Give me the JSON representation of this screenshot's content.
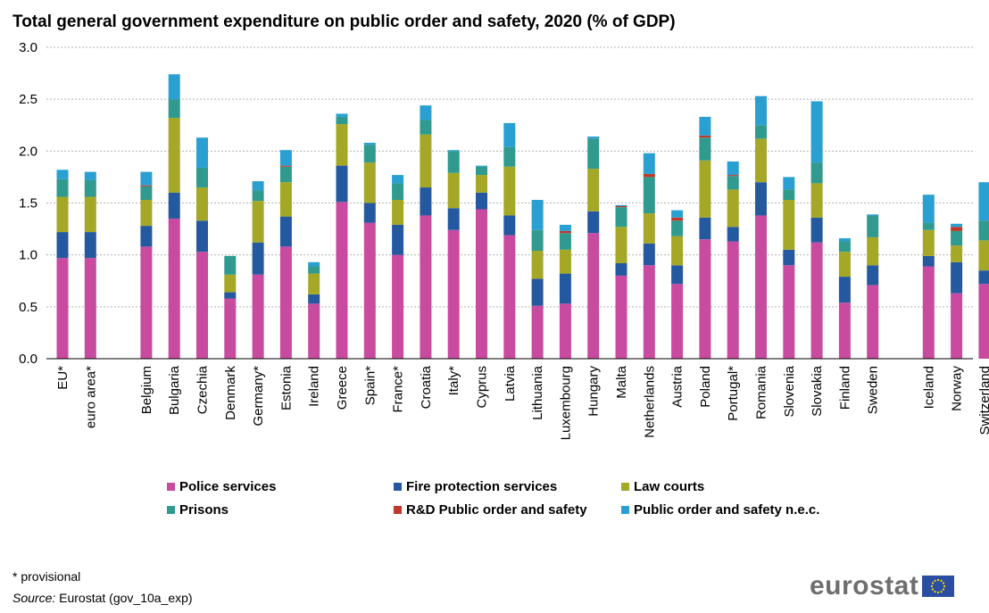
{
  "chart_data": {
    "type": "bar",
    "stacked": true,
    "title": "Total general government expenditure on public order and safety, 2020 (% of GDP)",
    "ylim": [
      0,
      3.0
    ],
    "yticks": [
      "0.0",
      "0.5",
      "1.0",
      "1.5",
      "2.0",
      "2.5",
      "3.0"
    ],
    "grid": true,
    "legend_position": "bottom",
    "categories": [
      "EU*",
      "euro area*",
      "Belgium",
      "Bulgaria",
      "Czechia",
      "Denmark",
      "Germany*",
      "Estonia",
      "Ireland",
      "Greece",
      "Spain*",
      "France*",
      "Croatia",
      "Italy*",
      "Cyprus",
      "Latvia",
      "Lithuania",
      "Luxembourg",
      "Hungary",
      "Malta",
      "Netherlands",
      "Austria",
      "Poland",
      "Portugal*",
      "Romania",
      "Slovenia",
      "Slovakia",
      "Finland",
      "Sweden",
      "Iceland",
      "Norway",
      "Switzerland"
    ],
    "series": [
      {
        "name": "Police services",
        "color": "#c84b9f",
        "values": [
          0.97,
          0.97,
          1.08,
          1.35,
          1.03,
          0.58,
          0.81,
          1.08,
          0.53,
          1.51,
          1.31,
          1.0,
          1.38,
          1.24,
          1.44,
          1.19,
          0.51,
          0.53,
          1.21,
          0.8,
          0.9,
          0.72,
          1.15,
          1.13,
          1.38,
          0.9,
          1.12,
          0.54,
          0.71,
          0.89,
          0.63,
          0.72
        ]
      },
      {
        "name": "Fire protection services",
        "color": "#25599f",
        "values": [
          0.25,
          0.25,
          0.2,
          0.25,
          0.3,
          0.06,
          0.31,
          0.29,
          0.09,
          0.35,
          0.19,
          0.29,
          0.27,
          0.21,
          0.16,
          0.19,
          0.26,
          0.29,
          0.21,
          0.12,
          0.21,
          0.18,
          0.21,
          0.14,
          0.32,
          0.15,
          0.24,
          0.25,
          0.19,
          0.1,
          0.3,
          0.13
        ]
      },
      {
        "name": "Law courts",
        "color": "#a4a826",
        "values": [
          0.34,
          0.34,
          0.25,
          0.72,
          0.32,
          0.17,
          0.4,
          0.33,
          0.2,
          0.4,
          0.39,
          0.24,
          0.51,
          0.34,
          0.17,
          0.47,
          0.27,
          0.23,
          0.41,
          0.35,
          0.29,
          0.28,
          0.55,
          0.36,
          0.42,
          0.48,
          0.33,
          0.24,
          0.27,
          0.25,
          0.16,
          0.29
        ]
      },
      {
        "name": "Prisons",
        "color": "#2f9a8d",
        "values": [
          0.17,
          0.16,
          0.13,
          0.18,
          0.19,
          0.18,
          0.1,
          0.15,
          0.07,
          0.07,
          0.17,
          0.16,
          0.14,
          0.21,
          0.08,
          0.19,
          0.2,
          0.16,
          0.29,
          0.19,
          0.35,
          0.15,
          0.22,
          0.13,
          0.13,
          0.1,
          0.2,
          0.1,
          0.21,
          0.07,
          0.14,
          0.19
        ]
      },
      {
        "name": "R&D Public order and safety",
        "color": "#c0392b",
        "values": [
          0.0,
          0.0,
          0.01,
          0.0,
          0.0,
          0.0,
          0.0,
          0.01,
          0.0,
          0.0,
          0.0,
          0.0,
          0.0,
          0.0,
          0.0,
          0.0,
          0.0,
          0.02,
          0.0,
          0.01,
          0.03,
          0.03,
          0.02,
          0.01,
          0.0,
          0.0,
          0.0,
          0.0,
          0.0,
          0.0,
          0.04,
          0.0
        ]
      },
      {
        "name": "Public order and safety n.e.c.",
        "color": "#2aa0d2",
        "values": [
          0.09,
          0.08,
          0.13,
          0.24,
          0.29,
          0.0,
          0.09,
          0.15,
          0.04,
          0.03,
          0.02,
          0.08,
          0.14,
          0.01,
          0.01,
          0.23,
          0.29,
          0.06,
          0.02,
          0.01,
          0.2,
          0.07,
          0.18,
          0.13,
          0.28,
          0.12,
          0.59,
          0.03,
          0.01,
          0.27,
          0.03,
          0.37
        ]
      }
    ]
  },
  "footnote": "* provisional",
  "source_label": "Source:",
  "source_text": " Eurostat  (gov_10a_exp)",
  "logo_text": "eurostat"
}
